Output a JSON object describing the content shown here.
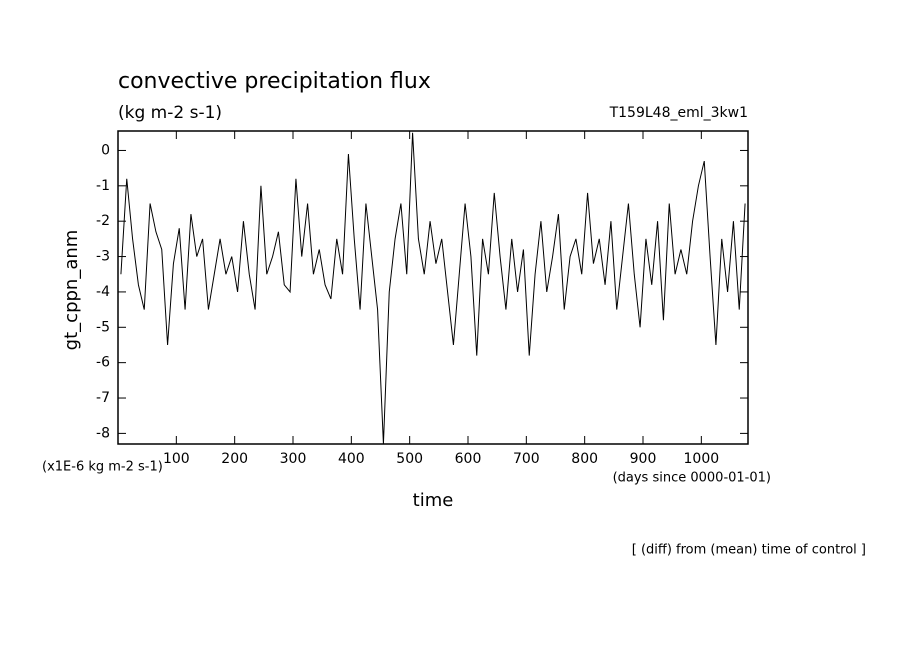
{
  "chart_data": {
    "type": "line",
    "title": "convective precipitation flux",
    "subtitle": "(kg m-2 s-1)",
    "run_label": "T159L48_eml_3kw1",
    "y_label": "gt_cppn_anm",
    "y_units": "(x1E-6 kg m-2 s-1)",
    "x_units": "(days since 0000-01-01)",
    "x_label": "time",
    "annotation": "[ (diff) from (mean) time of control ]",
    "xlim": [
      0,
      1080
    ],
    "ylim": [
      -8.3,
      0.55
    ],
    "xticks": [
      100,
      200,
      300,
      400,
      500,
      600,
      700,
      800,
      900,
      1000
    ],
    "yticks": [
      0,
      -1,
      -2,
      -3,
      -4,
      -5,
      -6,
      -7,
      -8
    ],
    "grid": false,
    "series": [
      {
        "name": "gt_cppn_anm",
        "color": "#000000",
        "x": [
          5,
          15,
          25,
          35,
          45,
          55,
          65,
          75,
          85,
          95,
          105,
          115,
          125,
          135,
          145,
          155,
          165,
          175,
          185,
          195,
          205,
          215,
          225,
          235,
          245,
          255,
          265,
          275,
          285,
          295,
          305,
          315,
          325,
          335,
          345,
          355,
          365,
          375,
          385,
          395,
          405,
          415,
          425,
          435,
          445,
          455,
          465,
          475,
          485,
          495,
          505,
          515,
          525,
          535,
          545,
          555,
          565,
          575,
          585,
          595,
          605,
          615,
          625,
          635,
          645,
          655,
          665,
          675,
          685,
          695,
          705,
          715,
          725,
          735,
          745,
          755,
          765,
          775,
          785,
          795,
          805,
          815,
          825,
          835,
          845,
          855,
          865,
          875,
          885,
          895,
          905,
          915,
          925,
          935,
          945,
          955,
          965,
          975,
          985,
          995,
          1005,
          1015,
          1025,
          1035,
          1045,
          1055,
          1065,
          1075
        ],
        "values": [
          -3.5,
          -0.8,
          -2.5,
          -3.8,
          -4.5,
          -1.5,
          -2.3,
          -2.8,
          -5.5,
          -3.2,
          -2.2,
          -4.5,
          -1.8,
          -3.0,
          -2.5,
          -4.5,
          -3.5,
          -2.5,
          -3.5,
          -3.0,
          -4.0,
          -2.0,
          -3.5,
          -4.5,
          -1.0,
          -3.5,
          -3.0,
          -2.3,
          -3.8,
          -4.0,
          -0.8,
          -3.0,
          -1.5,
          -3.5,
          -2.8,
          -3.8,
          -4.2,
          -2.5,
          -3.5,
          -0.1,
          -2.5,
          -4.5,
          -1.5,
          -3.0,
          -4.5,
          -8.3,
          -4.0,
          -2.5,
          -1.5,
          -3.5,
          0.5,
          -2.5,
          -3.5,
          -2.0,
          -3.2,
          -2.5,
          -4.0,
          -5.5,
          -3.5,
          -1.5,
          -3.0,
          -5.8,
          -2.5,
          -3.5,
          -1.2,
          -3.0,
          -4.5,
          -2.5,
          -4.0,
          -2.8,
          -5.8,
          -3.5,
          -2.0,
          -4.0,
          -3.0,
          -1.8,
          -4.5,
          -3.0,
          -2.5,
          -3.5,
          -1.2,
          -3.2,
          -2.5,
          -3.8,
          -2.0,
          -4.5,
          -3.0,
          -1.5,
          -3.5,
          -5.0,
          -2.5,
          -3.8,
          -2.0,
          -4.8,
          -1.5,
          -3.5,
          -2.8,
          -3.5,
          -2.0,
          -1.0,
          -0.3,
          -3.0,
          -5.5,
          -2.5,
          -4.0,
          -2.0,
          -4.5,
          -1.5
        ]
      }
    ]
  }
}
